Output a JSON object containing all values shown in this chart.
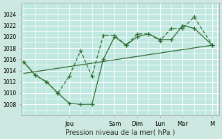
{
  "title": "",
  "xlabel": "Pression niveau de la mer( hPa )",
  "ylabel": "",
  "bg_color": "#cce8e0",
  "plot_bg_color": "#c0e8e0",
  "grid_color": "#ffffff",
  "line_color": "#2d6a2d",
  "ylim": [
    1006,
    1026
  ],
  "yticks": [
    1008,
    1010,
    1012,
    1014,
    1016,
    1018,
    1020,
    1022,
    1024
  ],
  "xlim": [
    -0.1,
    8.6
  ],
  "day_labels": [
    "Jeu",
    "Sam",
    "Dim",
    "Lun",
    "Mar",
    "M"
  ],
  "day_positions": [
    2.0,
    4.0,
    5.0,
    6.0,
    7.0,
    8.3
  ],
  "series1_x": [
    0.0,
    0.5,
    1.0,
    1.5,
    2.0,
    2.5,
    3.0,
    3.5,
    4.0,
    4.5,
    5.0,
    5.5,
    6.0,
    6.5,
    7.0,
    7.5,
    8.3
  ],
  "series1_y": [
    1015.5,
    1013.2,
    1012.0,
    1010.0,
    1008.2,
    1008.0,
    1008.0,
    1016.0,
    1020.0,
    1018.5,
    1020.0,
    1020.5,
    1019.5,
    1019.5,
    1022.0,
    1021.5,
    1018.5
  ],
  "series2_x": [
    0.0,
    0.5,
    1.0,
    1.5,
    2.0,
    2.5,
    3.0,
    3.5,
    4.0,
    4.5,
    5.0,
    5.5,
    6.0,
    6.5,
    7.0,
    7.5,
    8.3
  ],
  "series2_y": [
    1015.5,
    1013.2,
    1012.0,
    1010.0,
    1013.0,
    1017.5,
    1013.0,
    1020.2,
    1020.2,
    1018.5,
    1020.5,
    1020.5,
    1019.3,
    1021.5,
    1021.5,
    1023.5,
    1018.5
  ],
  "trend_x": [
    0.0,
    8.3
  ],
  "trend_y": [
    1013.5,
    1018.5
  ],
  "marker": "+",
  "markersize": 4,
  "linewidth": 0.9
}
